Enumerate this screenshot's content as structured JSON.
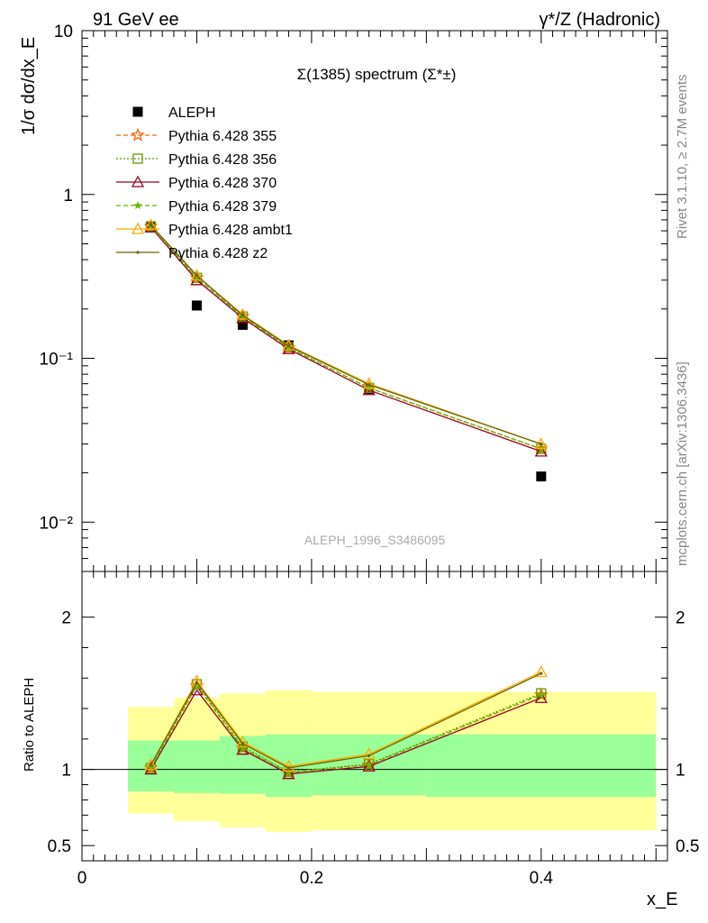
{
  "header": {
    "left": "91 GeV ee",
    "right": "γ*/Z (Hadronic)"
  },
  "side_text": {
    "top": "Rivet 3.1.10, ≥ 2.7M events",
    "bottom": "mcplots.cern.ch [arXiv:1306.3436]"
  },
  "watermark": "ALEPH_1996_S3486095",
  "colors": {
    "aleph": "#000000",
    "p355": "#ff6600",
    "p356": "#669900",
    "p370": "#990022",
    "p379": "#66bb00",
    "ambt1": "#ffaa00",
    "z2": "#666600",
    "band_yellow": "#ffff99",
    "band_green": "#99ff99"
  },
  "chart_data": [
    {
      "type": "line",
      "panel": "main",
      "title": "Σ(1385) spectrum (Σ*±)",
      "ylabel": "1/σ dσ/dx_E",
      "yscale": "log",
      "ylim": [
        0.005,
        10
      ],
      "xlim": [
        0,
        0.51
      ],
      "y_tick_labels": [
        "10⁻²",
        "10⁻¹",
        "1",
        "10"
      ],
      "legend_position": "top-left",
      "series": [
        {
          "name": "ALEPH",
          "marker": "square",
          "x": [
            0.06,
            0.1,
            0.14,
            0.18,
            0.25,
            0.4
          ],
          "y": [
            0.63,
            0.21,
            0.16,
            0.12,
            0.065,
            0.019
          ]
        },
        {
          "name": "Pythia 6.428 355",
          "marker": "star-open",
          "x": [
            0.06,
            0.1,
            0.14,
            0.18,
            0.25,
            0.4
          ],
          "y": [
            0.64,
            0.31,
            0.18,
            0.116,
            0.066,
            0.028
          ]
        },
        {
          "name": "Pythia 6.428 356",
          "marker": "square-open",
          "x": [
            0.06,
            0.1,
            0.14,
            0.18,
            0.25,
            0.4
          ],
          "y": [
            0.64,
            0.31,
            0.18,
            0.117,
            0.066,
            0.028
          ]
        },
        {
          "name": "Pythia 6.428 370",
          "marker": "triangle-open",
          "x": [
            0.06,
            0.1,
            0.14,
            0.18,
            0.25,
            0.4
          ],
          "y": [
            0.63,
            0.3,
            0.176,
            0.114,
            0.064,
            0.027
          ]
        },
        {
          "name": "Pythia 6.428 379",
          "marker": "star",
          "x": [
            0.06,
            0.1,
            0.14,
            0.18,
            0.25,
            0.4
          ],
          "y": [
            0.64,
            0.31,
            0.18,
            0.116,
            0.066,
            0.028
          ]
        },
        {
          "name": "Pythia 6.428 ambt1",
          "marker": "triangle-open",
          "x": [
            0.06,
            0.1,
            0.14,
            0.18,
            0.25,
            0.4
          ],
          "y": [
            0.65,
            0.32,
            0.185,
            0.12,
            0.07,
            0.03
          ]
        },
        {
          "name": "Pythia 6.428 z2",
          "marker": "dot",
          "x": [
            0.06,
            0.1,
            0.14,
            0.18,
            0.25,
            0.4
          ],
          "y": [
            0.65,
            0.32,
            0.183,
            0.119,
            0.069,
            0.03
          ]
        }
      ]
    },
    {
      "type": "line",
      "panel": "ratio",
      "ylabel": "Ratio to ALEPH",
      "xlabel": "x_E",
      "ylim": [
        0.4,
        2.3
      ],
      "xlim": [
        0,
        0.51
      ],
      "x_ticks": [
        0,
        0.2,
        0.4
      ],
      "x_tick_labels": [
        "0",
        "0.2",
        "0.4"
      ],
      "y_ticks": [
        0.5,
        1,
        2
      ],
      "y_tick_labels": [
        "0.5",
        "1",
        "2"
      ],
      "bands": [
        {
          "x0": 0.04,
          "x1": 0.08,
          "yellow": [
            0.71,
            1.41
          ],
          "green": [
            0.855,
            1.19
          ]
        },
        {
          "x0": 0.08,
          "x1": 0.12,
          "yellow": [
            0.66,
            1.47
          ],
          "green": [
            0.845,
            1.19
          ]
        },
        {
          "x0": 0.12,
          "x1": 0.16,
          "yellow": [
            0.62,
            1.5
          ],
          "green": [
            0.84,
            1.22
          ]
        },
        {
          "x0": 0.16,
          "x1": 0.2,
          "yellow": [
            0.59,
            1.52
          ],
          "green": [
            0.82,
            1.23
          ]
        },
        {
          "x0": 0.2,
          "x1": 0.3,
          "yellow": [
            0.6,
            1.51
          ],
          "green": [
            0.83,
            1.23
          ]
        },
        {
          "x0": 0.3,
          "x1": 0.5,
          "yellow": [
            0.6,
            1.51
          ],
          "green": [
            0.82,
            1.23
          ]
        }
      ],
      "series": [
        {
          "name": "Pythia 6.428 355",
          "x": [
            0.06,
            0.1,
            0.14,
            0.18,
            0.25,
            0.4
          ],
          "y": [
            1.01,
            1.55,
            1.14,
            0.98,
            1.03,
            1.49
          ]
        },
        {
          "name": "Pythia 6.428 356",
          "x": [
            0.06,
            0.1,
            0.14,
            0.18,
            0.25,
            0.4
          ],
          "y": [
            1.01,
            1.56,
            1.15,
            0.985,
            1.035,
            1.5
          ]
        },
        {
          "name": "Pythia 6.428 370",
          "x": [
            0.06,
            0.1,
            0.14,
            0.18,
            0.25,
            0.4
          ],
          "y": [
            1.0,
            1.52,
            1.13,
            0.97,
            1.02,
            1.47
          ]
        },
        {
          "name": "Pythia 6.428 379",
          "x": [
            0.06,
            0.1,
            0.14,
            0.18,
            0.25,
            0.4
          ],
          "y": [
            1.01,
            1.55,
            1.14,
            0.98,
            1.03,
            1.49
          ]
        },
        {
          "name": "Pythia 6.428 ambt1",
          "x": [
            0.06,
            0.1,
            0.14,
            0.18,
            0.25,
            0.4
          ],
          "y": [
            1.03,
            1.58,
            1.18,
            1.02,
            1.1,
            1.64
          ]
        },
        {
          "name": "Pythia 6.428 z2",
          "x": [
            0.06,
            0.1,
            0.14,
            0.18,
            0.25,
            0.4
          ],
          "y": [
            1.03,
            1.57,
            1.17,
            1.01,
            1.09,
            1.63
          ]
        }
      ]
    }
  ]
}
